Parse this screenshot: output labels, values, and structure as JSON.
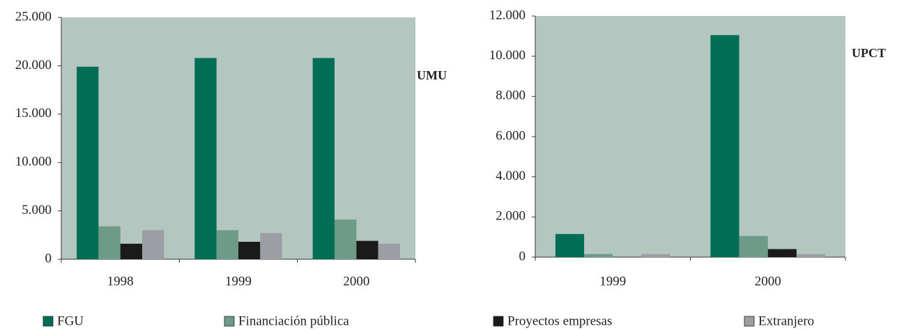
{
  "chart_data": [
    {
      "type": "bar",
      "title": "UMU",
      "categories": [
        "1998",
        "1999",
        "2000"
      ],
      "series": [
        {
          "name": "FGU",
          "color": "#006e55",
          "values": [
            19900,
            20800,
            20800
          ]
        },
        {
          "name": "Financiación pública",
          "color": "#6e9a88",
          "values": [
            3400,
            3000,
            4100
          ]
        },
        {
          "name": "Proyectos empresas",
          "color": "#1a1a1a",
          "values": [
            1600,
            1800,
            1900
          ]
        },
        {
          "name": "Extranjero",
          "color": "#9b9ea3",
          "values": [
            3000,
            2700,
            1600
          ]
        }
      ],
      "ylim": [
        0,
        25000
      ],
      "yticks": [
        0,
        {
          "value": 5000,
          "label": "5.000"
        },
        {
          "value": 10000,
          "label": "10.000"
        },
        {
          "value": 15000,
          "label": "15.000"
        },
        {
          "value": 20000,
          "label": "20.000"
        },
        {
          "value": 25000,
          "label": "25.000"
        }
      ],
      "background": "#b3c6c0"
    },
    {
      "type": "bar",
      "title": "UPCT",
      "categories": [
        "1999",
        "2000"
      ],
      "series": [
        {
          "name": "FGU",
          "color": "#006e55",
          "values": [
            1150,
            11050
          ]
        },
        {
          "name": "Financiación pública",
          "color": "#6e9a88",
          "values": [
            150,
            1050
          ]
        },
        {
          "name": "Proyectos empresas",
          "color": "#1a1a1a",
          "values": [
            0,
            400
          ]
        },
        {
          "name": "Extranjero",
          "color": "#9b9ea3",
          "values": [
            150,
            150
          ]
        }
      ],
      "ylim": [
        0,
        12000
      ],
      "yticks": [
        0,
        {
          "value": 2000,
          "label": "2.000"
        },
        {
          "value": 4000,
          "label": "4.000"
        },
        {
          "value": 6000,
          "label": "6.000"
        },
        {
          "value": 8000,
          "label": "8.000"
        },
        {
          "value": 10000,
          "label": "10.000"
        },
        {
          "value": 12000,
          "label": "12.000"
        }
      ],
      "background": "#b3c6c0"
    }
  ]
}
